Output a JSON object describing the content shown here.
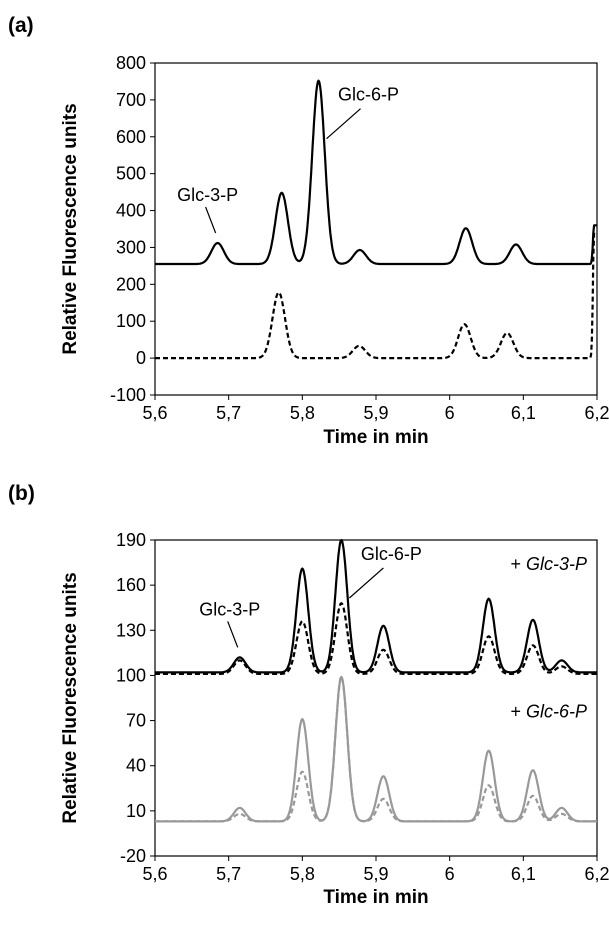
{
  "chart_data": [
    {
      "panel_label": "(a)",
      "type": "line",
      "xlabel": "Time in min",
      "ylabel": "Relative Fluorescence units",
      "xlim": [
        5.6,
        6.2
      ],
      "ylim": [
        -100,
        800
      ],
      "x_ticks": [
        "5,6",
        "5,7",
        "5,8",
        "5,9",
        "6",
        "6,1",
        "6,2"
      ],
      "y_ticks": [
        "-100",
        "0",
        "100",
        "200",
        "300",
        "400",
        "500",
        "600",
        "700",
        "800"
      ],
      "grid": false,
      "annotations": [
        {
          "text": "Glc-3-P",
          "x": 5.685,
          "y": 312
        },
        {
          "text": "Glc-6-P",
          "x": 5.822,
          "y": 752
        }
      ],
      "series": [
        {
          "color": "#000000",
          "style": "solid",
          "baseline": 255,
          "peaks": [
            {
              "x": 5.685,
              "y": 312
            },
            {
              "x": 5.772,
              "y": 448
            },
            {
              "x": 5.822,
              "y": 752
            },
            {
              "x": 5.878,
              "y": 293
            },
            {
              "x": 6.022,
              "y": 352
            },
            {
              "x": 6.09,
              "y": 308
            }
          ],
          "end_value": 360
        },
        {
          "color": "#000000",
          "style": "dashed",
          "baseline": 0,
          "peaks": [
            {
              "x": 5.768,
              "y": 178
            },
            {
              "x": 5.877,
              "y": 33
            },
            {
              "x": 6.02,
              "y": 92
            },
            {
              "x": 6.078,
              "y": 68
            }
          ],
          "end_value": 340
        }
      ]
    },
    {
      "panel_label": "(b)",
      "type": "line",
      "xlabel": "Time in min",
      "ylabel": "Relative Fluorescence units",
      "xlim": [
        5.6,
        6.2
      ],
      "ylim": [
        -20,
        190
      ],
      "x_ticks": [
        "5,6",
        "5,7",
        "5,8",
        "5,9",
        "6",
        "6,1",
        "6,2"
      ],
      "y_ticks": [
        "-20",
        "10",
        "40",
        "70",
        "100",
        "130",
        "160",
        "190"
      ],
      "grid": false,
      "annotations": [
        {
          "text": "Glc-3-P",
          "x": 5.715,
          "y": 112
        },
        {
          "text": "Glc-6-P",
          "x": 5.853,
          "y": 190
        }
      ],
      "legend": [
        {
          "text_prefix": "+ ",
          "text": "Glc-3-P",
          "color": "#000000"
        },
        {
          "text_prefix": "+ ",
          "text": "Glc-6-P",
          "color": "#999999"
        }
      ],
      "series": [
        {
          "color": "#000000",
          "style": "solid",
          "baseline": 102,
          "peaks": [
            {
              "x": 5.715,
              "y": 112
            },
            {
              "x": 5.8,
              "y": 171
            },
            {
              "x": 5.853,
              "y": 190
            },
            {
              "x": 5.91,
              "y": 133
            },
            {
              "x": 6.053,
              "y": 151
            },
            {
              "x": 6.113,
              "y": 137
            },
            {
              "x": 6.152,
              "y": 110
            }
          ]
        },
        {
          "color": "#000000",
          "style": "dashed",
          "baseline": 101,
          "peaks": [
            {
              "x": 5.715,
              "y": 110
            },
            {
              "x": 5.8,
              "y": 136
            },
            {
              "x": 5.853,
              "y": 148
            },
            {
              "x": 5.91,
              "y": 117
            },
            {
              "x": 6.053,
              "y": 126
            },
            {
              "x": 6.113,
              "y": 120
            },
            {
              "x": 6.152,
              "y": 106
            }
          ]
        },
        {
          "color": "#999999",
          "style": "solid",
          "baseline": 3,
          "peaks": [
            {
              "x": 5.715,
              "y": 12
            },
            {
              "x": 5.8,
              "y": 71
            },
            {
              "x": 5.853,
              "y": 99
            },
            {
              "x": 5.91,
              "y": 33
            },
            {
              "x": 6.053,
              "y": 50
            },
            {
              "x": 6.113,
              "y": 37
            },
            {
              "x": 6.152,
              "y": 12
            }
          ]
        },
        {
          "color": "#999999",
          "style": "dashed",
          "baseline": 3,
          "peaks": [
            {
              "x": 5.715,
              "y": 8
            },
            {
              "x": 5.8,
              "y": 36
            },
            {
              "x": 5.853,
              "y": 99
            },
            {
              "x": 5.91,
              "y": 18
            },
            {
              "x": 6.053,
              "y": 27
            },
            {
              "x": 6.113,
              "y": 20
            },
            {
              "x": 6.152,
              "y": 8
            }
          ]
        }
      ]
    }
  ]
}
